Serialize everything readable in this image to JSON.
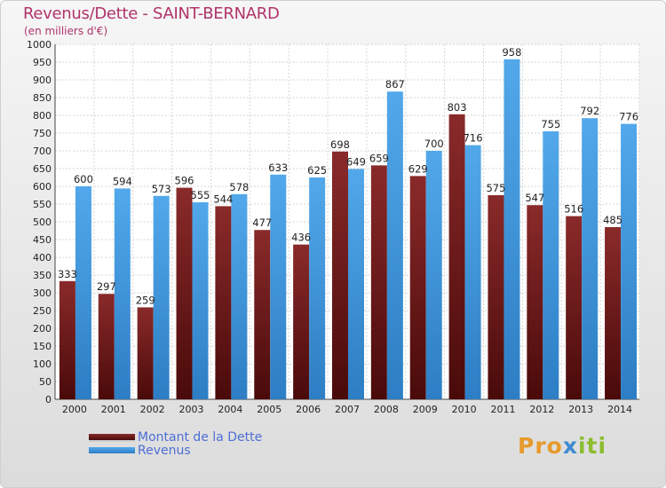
{
  "title": "Revenus/Dette - SAINT-BERNARD",
  "subtitle": "(en milliers d'€)",
  "colors": {
    "dette": "#7a1f1f",
    "revenus": "#3f9ae0",
    "title": "#b0336b"
  },
  "legend": [
    {
      "label": "Montant de la Dette",
      "color": "#7a1f1f"
    },
    {
      "label": "Revenus",
      "color": "#3f9ae0"
    }
  ],
  "logo": {
    "p1": "Pro",
    "p2": "x",
    "p3": "iti"
  },
  "chart_data": {
    "type": "bar",
    "categories": [
      "2000",
      "2001",
      "2002",
      "2003",
      "2004",
      "2005",
      "2006",
      "2007",
      "2008",
      "2009",
      "2010",
      "2011",
      "2012",
      "2013",
      "2014"
    ],
    "series": [
      {
        "name": "Montant de la Dette",
        "values": [
          333,
          297,
          259,
          596,
          544,
          477,
          436,
          698,
          659,
          629,
          803,
          575,
          547,
          516,
          485
        ]
      },
      {
        "name": "Revenus",
        "values": [
          600,
          594,
          573,
          555,
          578,
          633,
          625,
          649,
          867,
          700,
          716,
          958,
          755,
          792,
          776
        ]
      }
    ],
    "ylim": [
      0,
      1000
    ],
    "yticks": [
      0,
      50,
      100,
      150,
      200,
      250,
      300,
      350,
      400,
      450,
      500,
      550,
      600,
      650,
      700,
      750,
      800,
      850,
      900,
      950,
      1000
    ],
    "grid": true,
    "legend_position": "bottom-left"
  }
}
